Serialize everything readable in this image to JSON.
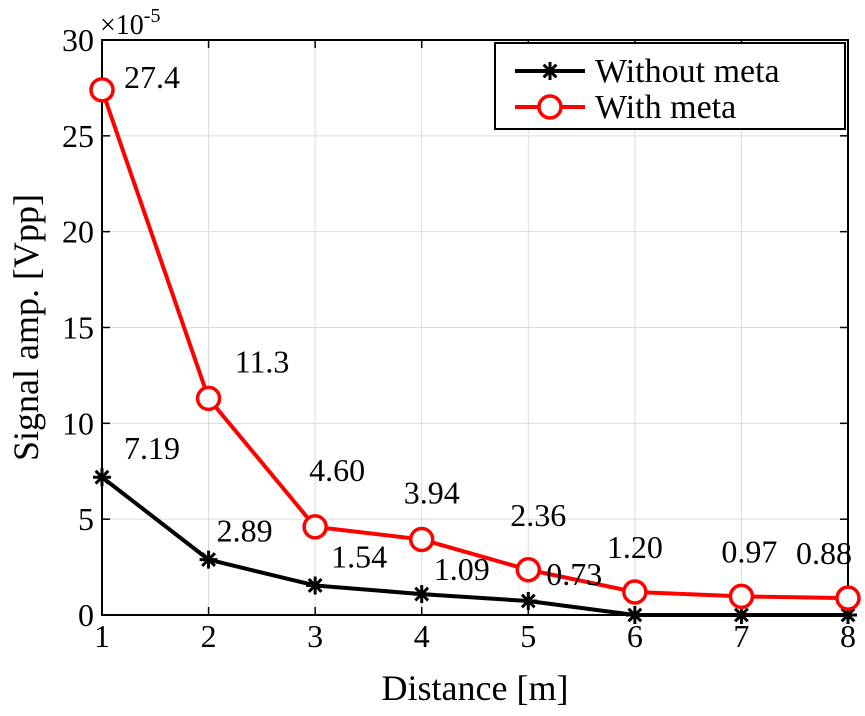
{
  "chart_data": {
    "type": "line",
    "xlabel": "Distance [m]",
    "ylabel": "Signal amp. [Vpp]",
    "y_multiplier": "×10",
    "y_multiplier_exponent": "-5",
    "x": [
      1,
      2,
      3,
      4,
      5,
      6,
      7,
      8
    ],
    "xlim": [
      1,
      8
    ],
    "ylim": [
      0,
      30
    ],
    "x_ticks": [
      "1",
      "2",
      "3",
      "4",
      "5",
      "6",
      "7",
      "8"
    ],
    "y_ticks": [
      "0",
      "5",
      "10",
      "15",
      "20",
      "25",
      "30"
    ],
    "grid": true,
    "legend_position": "top-right",
    "series": [
      {
        "name": "Without meta",
        "color": "#000000",
        "marker": "asterisk",
        "values": [
          7.19,
          2.89,
          1.54,
          1.09,
          0.73,
          0,
          0,
          0
        ],
        "labels": [
          "7.19",
          "2.89",
          "1.54",
          "1.09",
          "0.73",
          "",
          "",
          ""
        ]
      },
      {
        "name": "With meta",
        "color": "#ff0000",
        "marker": "circle",
        "values": [
          27.4,
          11.3,
          4.6,
          3.94,
          2.36,
          1.2,
          0.97,
          0.88
        ],
        "labels": [
          "27.4",
          "11.3",
          "4.60",
          "3.94",
          "2.36",
          "1.20",
          "0.97",
          "0.88"
        ]
      }
    ]
  }
}
